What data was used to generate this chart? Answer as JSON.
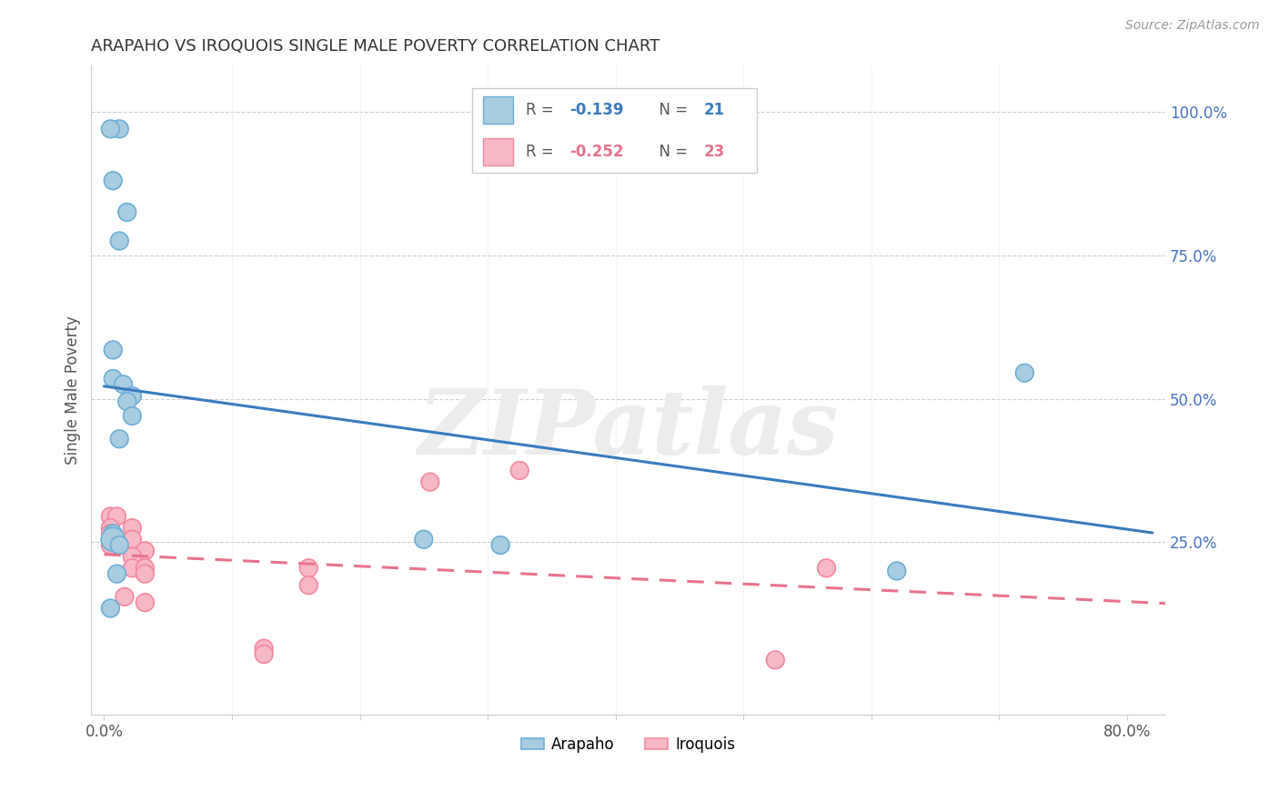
{
  "title": "ARAPAHO VS IROQUOIS SINGLE MALE POVERTY CORRELATION CHART",
  "source": "Source: ZipAtlas.com",
  "ylabel": "Single Male Poverty",
  "xlim": [
    -0.01,
    0.83
  ],
  "ylim": [
    -0.05,
    1.08
  ],
  "arapaho_color": "#a8cce0",
  "arapaho_edge_color": "#6baed6",
  "iroquois_color": "#f5b8c4",
  "iroquois_edge_color": "#f4879f",
  "arapaho_line_color": "#3a7bbf",
  "iroquois_line_color": "#e8728d",
  "legend_R_arapaho": "-0.139",
  "legend_N_arapaho": "21",
  "legend_R_iroquois": "-0.252",
  "legend_N_iroquois": "23",
  "watermark": "ZIPatlas",
  "arapaho_x": [
    0.007,
    0.018,
    0.012,
    0.007,
    0.007,
    0.015,
    0.022,
    0.018,
    0.022,
    0.012,
    0.007,
    0.007,
    0.012,
    0.25,
    0.31,
    0.72,
    0.62,
    0.01,
    0.012,
    0.005,
    0.005
  ],
  "arapaho_y": [
    0.88,
    0.825,
    0.775,
    0.585,
    0.535,
    0.525,
    0.505,
    0.495,
    0.47,
    0.43,
    0.265,
    0.255,
    0.245,
    0.255,
    0.245,
    0.545,
    0.2,
    0.195,
    0.97,
    0.97,
    0.135
  ],
  "arapaho_sizes": [
    200,
    200,
    200,
    200,
    200,
    200,
    200,
    200,
    200,
    200,
    200,
    350,
    200,
    200,
    200,
    200,
    200,
    200,
    200,
    200,
    200
  ],
  "iroquois_x": [
    0.005,
    0.01,
    0.005,
    0.005,
    0.022,
    0.005,
    0.022,
    0.005,
    0.032,
    0.022,
    0.022,
    0.032,
    0.032,
    0.016,
    0.032,
    0.255,
    0.16,
    0.16,
    0.525,
    0.565,
    0.125,
    0.125,
    0.325
  ],
  "iroquois_y": [
    0.295,
    0.295,
    0.275,
    0.265,
    0.275,
    0.255,
    0.255,
    0.245,
    0.235,
    0.225,
    0.205,
    0.205,
    0.195,
    0.155,
    0.145,
    0.355,
    0.205,
    0.175,
    0.045,
    0.205,
    0.065,
    0.055,
    0.375
  ],
  "iroquois_sizes": [
    200,
    200,
    200,
    200,
    200,
    200,
    200,
    200,
    200,
    200,
    200,
    200,
    200,
    200,
    200,
    200,
    200,
    200,
    200,
    200,
    200,
    200,
    200
  ]
}
